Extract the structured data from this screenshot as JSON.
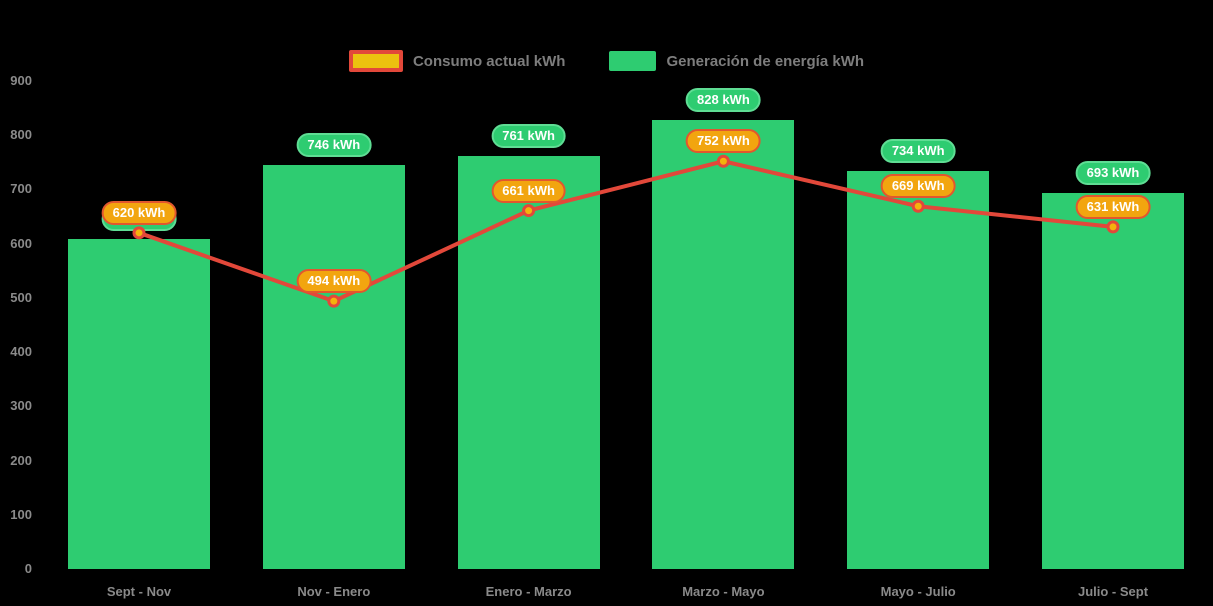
{
  "legend": {
    "consumo_label": "Consumo actual kWh",
    "generacion_label": "Generación de energía kWh"
  },
  "colors": {
    "background": "#000000",
    "bar_green": "#2ecc71",
    "green_pill_border": "#5fdd94",
    "line_red": "#e2483a",
    "dot_fill": "#f4b20c",
    "dot_ring": "#e2483a",
    "orange_pill_fill": "#f2a50f",
    "orange_pill_border": "#e2572e",
    "legend_swatch_yellow": "#ecc20f",
    "axis_text": "#8a8a8a",
    "legend_text": "#7d7d7d",
    "value_text": "#ffffff"
  },
  "chart_data": {
    "type": "bar",
    "title": "",
    "xlabel": "",
    "ylabel": "",
    "categories": [
      "Sept - Nov",
      "Nov - Enero",
      "Enero - Marzo",
      "Marzo - Mayo",
      "Mayo - Julio",
      "Julio - Sept"
    ],
    "series": [
      {
        "name": "Generación de energía kWh",
        "type": "bar",
        "color": "#2ecc71",
        "values": [
          608,
          746,
          761,
          828,
          734,
          693
        ],
        "labels": [
          "608 kWh",
          "746 kWh",
          "761 kWh",
          "828 kWh",
          "734 kWh",
          "693 kWh"
        ]
      },
      {
        "name": "Consumo actual kWh",
        "type": "line",
        "color": "#e2483a",
        "values": [
          620,
          494,
          661,
          752,
          669,
          631
        ],
        "labels": [
          "620 kWh",
          "494 kWh",
          "661 kWh",
          "752 kWh",
          "669 kWh",
          "631 kWh"
        ]
      }
    ],
    "ylim": [
      0,
      900
    ],
    "yticks": [
      900,
      800,
      700,
      600,
      500,
      400,
      300,
      200,
      100,
      0
    ],
    "grid": false,
    "legend_position": "top-center"
  }
}
